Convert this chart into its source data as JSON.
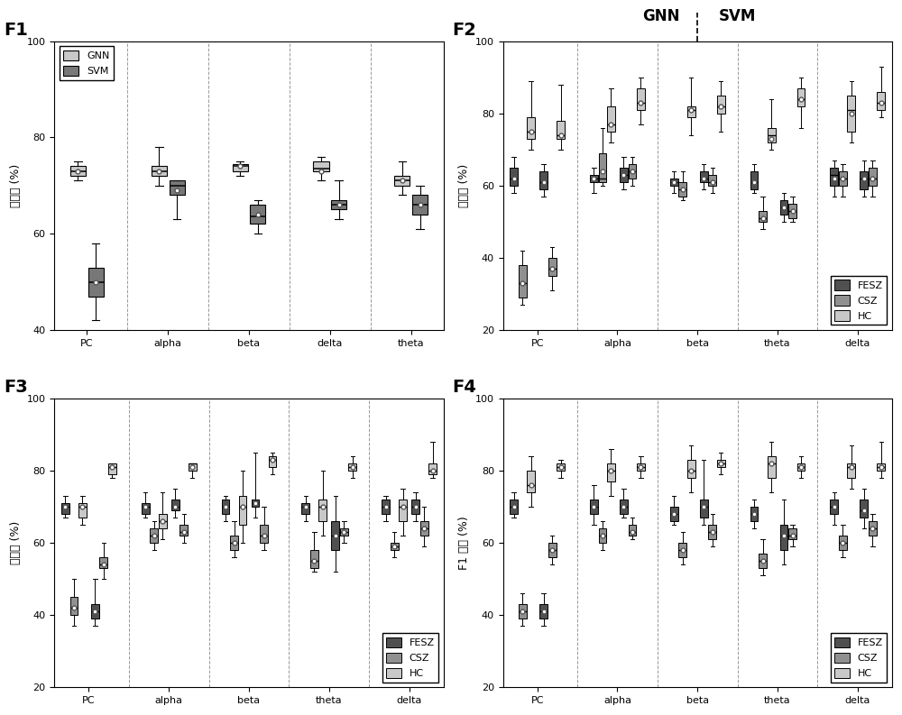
{
  "f1_categories": [
    "PC",
    "alpha",
    "beta",
    "delta",
    "theta"
  ],
  "f2_categories": [
    "PC",
    "alpha",
    "beta",
    "theta",
    "delta"
  ],
  "f3_categories": [
    "PC",
    "alpha",
    "beta",
    "theta",
    "delta"
  ],
  "f4_categories": [
    "PC",
    "alpha",
    "beta",
    "theta",
    "delta"
  ],
  "f1_gnn": [
    {
      "whislo": 71,
      "q1": 72,
      "med": 73,
      "q3": 74,
      "whishi": 75,
      "mean": 73
    },
    {
      "whislo": 70,
      "q1": 72,
      "med": 73,
      "q3": 74,
      "whishi": 78,
      "mean": 73
    },
    {
      "whislo": 72,
      "q1": 73,
      "med": 74,
      "q3": 74.5,
      "whishi": 75,
      "mean": 74
    },
    {
      "whislo": 71,
      "q1": 73,
      "med": 73.5,
      "q3": 75,
      "whishi": 76,
      "mean": 73
    },
    {
      "whislo": 68,
      "q1": 70,
      "med": 71,
      "q3": 72,
      "whishi": 75,
      "mean": 71
    }
  ],
  "f1_svm": [
    {
      "whislo": 42,
      "q1": 47,
      "med": 50,
      "q3": 53,
      "whishi": 58,
      "mean": 50
    },
    {
      "whislo": 63,
      "q1": 68,
      "med": 70,
      "q3": 71,
      "whishi": 71,
      "mean": 69
    },
    {
      "whislo": 60,
      "q1": 62,
      "med": 63.5,
      "q3": 66,
      "whishi": 67,
      "mean": 64
    },
    {
      "whislo": 63,
      "q1": 65,
      "med": 66,
      "q3": 67,
      "whishi": 71,
      "mean": 66
    },
    {
      "whislo": 61,
      "q1": 64,
      "med": 66,
      "q3": 68,
      "whishi": 70,
      "mean": 66
    }
  ],
  "f2_fesz_gnn": [
    {
      "whislo": 58,
      "q1": 60,
      "med": 62,
      "q3": 65,
      "whishi": 68,
      "mean": 62
    },
    {
      "whislo": 58,
      "q1": 61,
      "med": 62,
      "q3": 63,
      "whishi": 65,
      "mean": 62
    },
    {
      "whislo": 58,
      "q1": 60,
      "med": 61,
      "q3": 62,
      "whishi": 64,
      "mean": 61
    },
    {
      "whislo": 58,
      "q1": 59,
      "med": 61,
      "q3": 64,
      "whishi": 66,
      "mean": 61
    },
    {
      "whislo": 57,
      "q1": 60,
      "med": 63,
      "q3": 65,
      "whishi": 67,
      "mean": 62
    }
  ],
  "f2_csz_gnn": [
    {
      "whislo": 27,
      "q1": 29,
      "med": 33,
      "q3": 38,
      "whishi": 42,
      "mean": 33
    },
    {
      "whislo": 60,
      "q1": 61,
      "med": 62,
      "q3": 69,
      "whishi": 76,
      "mean": 64
    },
    {
      "whislo": 56,
      "q1": 57,
      "med": 59,
      "q3": 61,
      "whishi": 64,
      "mean": 59
    },
    {
      "whislo": 48,
      "q1": 50,
      "med": 51,
      "q3": 53,
      "whishi": 57,
      "mean": 51
    },
    {
      "whislo": 57,
      "q1": 60,
      "med": 62,
      "q3": 64,
      "whishi": 66,
      "mean": 62
    }
  ],
  "f2_hc_gnn": [
    {
      "whislo": 70,
      "q1": 73,
      "med": 75,
      "q3": 79,
      "whishi": 89,
      "mean": 75
    },
    {
      "whislo": 72,
      "q1": 75,
      "med": 77,
      "q3": 82,
      "whishi": 87,
      "mean": 77
    },
    {
      "whislo": 74,
      "q1": 79,
      "med": 81,
      "q3": 82,
      "whishi": 90,
      "mean": 81
    },
    {
      "whislo": 70,
      "q1": 72,
      "med": 74,
      "q3": 76,
      "whishi": 84,
      "mean": 73
    },
    {
      "whislo": 72,
      "q1": 75,
      "med": 81,
      "q3": 85,
      "whishi": 89,
      "mean": 80
    }
  ],
  "f2_fesz_svm": [
    {
      "whislo": 57,
      "q1": 59,
      "med": 61,
      "q3": 64,
      "whishi": 66,
      "mean": 61
    },
    {
      "whislo": 59,
      "q1": 61,
      "med": 63,
      "q3": 65,
      "whishi": 68,
      "mean": 63
    },
    {
      "whislo": 59,
      "q1": 61,
      "med": 62,
      "q3": 64,
      "whishi": 66,
      "mean": 62
    },
    {
      "whislo": 50,
      "q1": 52,
      "med": 54,
      "q3": 56,
      "whishi": 58,
      "mean": 54
    },
    {
      "whislo": 57,
      "q1": 59,
      "med": 62,
      "q3": 64,
      "whishi": 67,
      "mean": 62
    }
  ],
  "f2_csz_svm": [
    {
      "whislo": 31,
      "q1": 35,
      "med": 37,
      "q3": 40,
      "whishi": 43,
      "mean": 37
    },
    {
      "whislo": 60,
      "q1": 62,
      "med": 64,
      "q3": 66,
      "whishi": 68,
      "mean": 64
    },
    {
      "whislo": 58,
      "q1": 60,
      "med": 61,
      "q3": 63,
      "whishi": 65,
      "mean": 61
    },
    {
      "whislo": 50,
      "q1": 51,
      "med": 53,
      "q3": 55,
      "whishi": 57,
      "mean": 53
    },
    {
      "whislo": 57,
      "q1": 60,
      "med": 62,
      "q3": 65,
      "whishi": 67,
      "mean": 62
    }
  ],
  "f2_hc_svm": [
    {
      "whislo": 70,
      "q1": 73,
      "med": 74,
      "q3": 78,
      "whishi": 88,
      "mean": 74
    },
    {
      "whislo": 77,
      "q1": 81,
      "med": 83,
      "q3": 87,
      "whishi": 90,
      "mean": 83
    },
    {
      "whislo": 75,
      "q1": 80,
      "med": 82,
      "q3": 85,
      "whishi": 89,
      "mean": 82
    },
    {
      "whislo": 76,
      "q1": 82,
      "med": 84,
      "q3": 87,
      "whishi": 90,
      "mean": 84
    },
    {
      "whislo": 79,
      "q1": 81,
      "med": 83,
      "q3": 86,
      "whishi": 93,
      "mean": 83
    }
  ],
  "f3_fesz_gnn": [
    {
      "whislo": 67,
      "q1": 68,
      "med": 70,
      "q3": 71,
      "whishi": 73,
      "mean": 70
    },
    {
      "whislo": 67,
      "q1": 68,
      "med": 70,
      "q3": 71,
      "whishi": 74,
      "mean": 70
    },
    {
      "whislo": 66,
      "q1": 68,
      "med": 70,
      "q3": 72,
      "whishi": 73,
      "mean": 70
    },
    {
      "whislo": 66,
      "q1": 68,
      "med": 70,
      "q3": 71,
      "whishi": 73,
      "mean": 70
    },
    {
      "whislo": 66,
      "q1": 68,
      "med": 70,
      "q3": 72,
      "whishi": 73,
      "mean": 70
    }
  ],
  "f3_csz_gnn": [
    {
      "whislo": 37,
      "q1": 40,
      "med": 42,
      "q3": 45,
      "whishi": 50,
      "mean": 42
    },
    {
      "whislo": 58,
      "q1": 60,
      "med": 62,
      "q3": 64,
      "whishi": 66,
      "mean": 62
    },
    {
      "whislo": 56,
      "q1": 58,
      "med": 60,
      "q3": 62,
      "whishi": 66,
      "mean": 60
    },
    {
      "whislo": 52,
      "q1": 53,
      "med": 55,
      "q3": 58,
      "whishi": 63,
      "mean": 55
    },
    {
      "whislo": 56,
      "q1": 58,
      "med": 59,
      "q3": 60,
      "whishi": 63,
      "mean": 59
    }
  ],
  "f3_hc_gnn": [
    {
      "whislo": 65,
      "q1": 67,
      "med": 70,
      "q3": 71,
      "whishi": 73,
      "mean": 70
    },
    {
      "whislo": 61,
      "q1": 64,
      "med": 66,
      "q3": 68,
      "whishi": 74,
      "mean": 66
    },
    {
      "whislo": 60,
      "q1": 65,
      "med": 70,
      "q3": 73,
      "whishi": 80,
      "mean": 70
    },
    {
      "whislo": 62,
      "q1": 66,
      "med": 70,
      "q3": 72,
      "whishi": 80,
      "mean": 70
    },
    {
      "whislo": 62,
      "q1": 66,
      "med": 70,
      "q3": 72,
      "whishi": 75,
      "mean": 70
    }
  ],
  "f3_fesz_svm": [
    {
      "whislo": 37,
      "q1": 39,
      "med": 41,
      "q3": 43,
      "whishi": 50,
      "mean": 41
    },
    {
      "whislo": 67,
      "q1": 69,
      "med": 70,
      "q3": 72,
      "whishi": 75,
      "mean": 70
    },
    {
      "whislo": 67,
      "q1": 70,
      "med": 71,
      "q3": 72,
      "whishi": 85,
      "mean": 71
    },
    {
      "whislo": 52,
      "q1": 58,
      "med": 62,
      "q3": 66,
      "whishi": 73,
      "mean": 62
    },
    {
      "whislo": 66,
      "q1": 68,
      "med": 70,
      "q3": 72,
      "whishi": 74,
      "mean": 70
    }
  ],
  "f3_csz_svm": [
    {
      "whislo": 50,
      "q1": 53,
      "med": 54,
      "q3": 56,
      "whishi": 60,
      "mean": 54
    },
    {
      "whislo": 60,
      "q1": 62,
      "med": 63,
      "q3": 65,
      "whishi": 68,
      "mean": 63
    },
    {
      "whislo": 58,
      "q1": 60,
      "med": 62,
      "q3": 65,
      "whishi": 70,
      "mean": 62
    },
    {
      "whislo": 60,
      "q1": 62,
      "med": 63,
      "q3": 64,
      "whishi": 66,
      "mean": 63
    },
    {
      "whislo": 59,
      "q1": 62,
      "med": 64,
      "q3": 66,
      "whishi": 70,
      "mean": 64
    }
  ],
  "f3_hc_svm": [
    {
      "whislo": 78,
      "q1": 79,
      "med": 81,
      "q3": 82,
      "whishi": 82,
      "mean": 81
    },
    {
      "whislo": 78,
      "q1": 80,
      "med": 82,
      "q3": 82,
      "whishi": 82,
      "mean": 81
    },
    {
      "whislo": 79,
      "q1": 81,
      "med": 83,
      "q3": 84,
      "whishi": 85,
      "mean": 83
    },
    {
      "whislo": 78,
      "q1": 80,
      "med": 81,
      "q3": 82,
      "whishi": 84,
      "mean": 81
    },
    {
      "whislo": 78,
      "q1": 79,
      "med": 80,
      "q3": 82,
      "whishi": 88,
      "mean": 80
    }
  ],
  "f4_fesz_gnn": [
    {
      "whislo": 67,
      "q1": 68,
      "med": 70,
      "q3": 72,
      "whishi": 74,
      "mean": 70
    },
    {
      "whislo": 65,
      "q1": 68,
      "med": 70,
      "q3": 72,
      "whishi": 76,
      "mean": 70
    },
    {
      "whislo": 65,
      "q1": 66,
      "med": 68,
      "q3": 70,
      "whishi": 73,
      "mean": 68
    },
    {
      "whislo": 64,
      "q1": 66,
      "med": 68,
      "q3": 70,
      "whishi": 72,
      "mean": 68
    },
    {
      "whislo": 65,
      "q1": 68,
      "med": 70,
      "q3": 72,
      "whishi": 74,
      "mean": 70
    }
  ],
  "f4_csz_gnn": [
    {
      "whislo": 37,
      "q1": 39,
      "med": 41,
      "q3": 43,
      "whishi": 46,
      "mean": 41
    },
    {
      "whislo": 58,
      "q1": 60,
      "med": 62,
      "q3": 64,
      "whishi": 66,
      "mean": 62
    },
    {
      "whislo": 54,
      "q1": 56,
      "med": 58,
      "q3": 60,
      "whishi": 63,
      "mean": 58
    },
    {
      "whislo": 51,
      "q1": 53,
      "med": 55,
      "q3": 57,
      "whishi": 61,
      "mean": 55
    },
    {
      "whislo": 56,
      "q1": 58,
      "med": 60,
      "q3": 62,
      "whishi": 65,
      "mean": 60
    }
  ],
  "f4_hc_gnn": [
    {
      "whislo": 70,
      "q1": 74,
      "med": 76,
      "q3": 80,
      "whishi": 84,
      "mean": 76
    },
    {
      "whislo": 73,
      "q1": 77,
      "med": 80,
      "q3": 82,
      "whishi": 86,
      "mean": 80
    },
    {
      "whislo": 74,
      "q1": 78,
      "med": 80,
      "q3": 83,
      "whishi": 87,
      "mean": 80
    },
    {
      "whislo": 74,
      "q1": 78,
      "med": 82,
      "q3": 84,
      "whishi": 88,
      "mean": 82
    },
    {
      "whislo": 75,
      "q1": 78,
      "med": 81,
      "q3": 82,
      "whishi": 87,
      "mean": 81
    }
  ],
  "f4_fesz_svm": [
    {
      "whislo": 37,
      "q1": 39,
      "med": 41,
      "q3": 43,
      "whishi": 46,
      "mean": 41
    },
    {
      "whislo": 67,
      "q1": 68,
      "med": 70,
      "q3": 72,
      "whishi": 75,
      "mean": 70
    },
    {
      "whislo": 65,
      "q1": 67,
      "med": 70,
      "q3": 72,
      "whishi": 83,
      "mean": 70
    },
    {
      "whislo": 54,
      "q1": 58,
      "med": 62,
      "q3": 65,
      "whishi": 72,
      "mean": 62
    },
    {
      "whislo": 64,
      "q1": 67,
      "med": 69,
      "q3": 72,
      "whishi": 75,
      "mean": 69
    }
  ],
  "f4_csz_svm": [
    {
      "whislo": 54,
      "q1": 56,
      "med": 58,
      "q3": 60,
      "whishi": 62,
      "mean": 58
    },
    {
      "whislo": 61,
      "q1": 62,
      "med": 63,
      "q3": 65,
      "whishi": 67,
      "mean": 63
    },
    {
      "whislo": 59,
      "q1": 61,
      "med": 63,
      "q3": 65,
      "whishi": 68,
      "mean": 63
    },
    {
      "whislo": 59,
      "q1": 61,
      "med": 62,
      "q3": 64,
      "whishi": 65,
      "mean": 62
    },
    {
      "whislo": 59,
      "q1": 62,
      "med": 64,
      "q3": 66,
      "whishi": 68,
      "mean": 64
    }
  ],
  "f4_hc_svm": [
    {
      "whislo": 78,
      "q1": 80,
      "med": 81,
      "q3": 82,
      "whishi": 83,
      "mean": 81
    },
    {
      "whislo": 78,
      "q1": 80,
      "med": 81,
      "q3": 82,
      "whishi": 84,
      "mean": 81
    },
    {
      "whislo": 79,
      "q1": 81,
      "med": 82,
      "q3": 83,
      "whishi": 85,
      "mean": 82
    },
    {
      "whislo": 78,
      "q1": 80,
      "med": 81,
      "q3": 82,
      "whishi": 84,
      "mean": 81
    },
    {
      "whislo": 78,
      "q1": 80,
      "med": 81,
      "q3": 82,
      "whishi": 88,
      "mean": 81
    }
  ],
  "color_gnn_light": "#c8c8c8",
  "color_svm_dark": "#787878",
  "color_fesz": "#505050",
  "color_csz": "#909090",
  "color_hc": "#c8c8c8",
  "bg_color": "#ffffff"
}
